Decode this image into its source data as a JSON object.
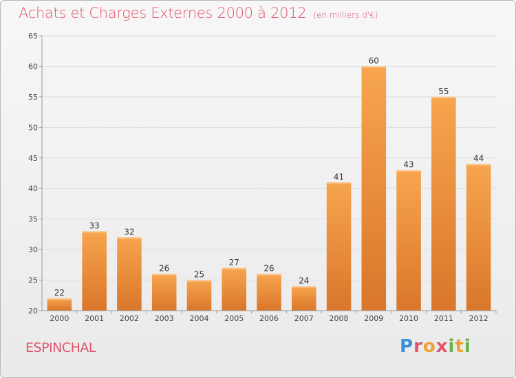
{
  "title": "Achats et Charges Externes 2000 à 2012",
  "subtitle": "(en milliers d'€)",
  "place": "ESPINCHAL",
  "brand": {
    "text": "Proxiti",
    "letters": [
      "P",
      "r",
      "o",
      "x",
      "i",
      "t",
      "i"
    ]
  },
  "colors": {
    "bar_top": "#f7a54e",
    "bar_bottom": "#d9762a",
    "accent_text": "#e0566c"
  },
  "chart_data": {
    "type": "bar",
    "title": "Achats et Charges Externes 2000 à 2012",
    "subtitle": "(en milliers d'€)",
    "categories": [
      "2000",
      "2001",
      "2002",
      "2003",
      "2004",
      "2005",
      "2006",
      "2007",
      "2008",
      "2009",
      "2010",
      "2011",
      "2012"
    ],
    "values": [
      22,
      33,
      32,
      26,
      25,
      27,
      26,
      24,
      41,
      60,
      43,
      55,
      44
    ],
    "ylim": [
      20,
      65
    ],
    "yticks": [
      20,
      25,
      30,
      35,
      40,
      45,
      50,
      55,
      60,
      65
    ],
    "grid": true,
    "data_labels": true,
    "xlabel": "",
    "ylabel": ""
  }
}
